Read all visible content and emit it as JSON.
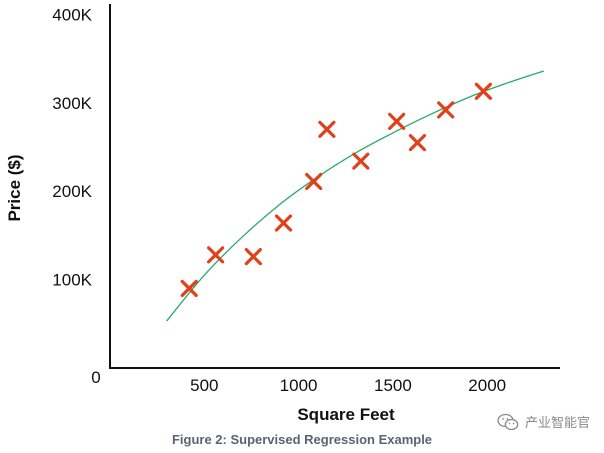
{
  "chart_data": {
    "type": "scatter",
    "title": "",
    "caption": "Figure 2: Supervised Regression Example",
    "xlabel": "Square Feet",
    "ylabel": "Price ($)",
    "xlim": [
      0,
      2350
    ],
    "ylim": [
      0,
      420000
    ],
    "x_ticks": [
      {
        "value": 500,
        "label": "500"
      },
      {
        "value": 1000,
        "label": "1000"
      },
      {
        "value": 1500,
        "label": "1500"
      },
      {
        "value": 2000,
        "label": "2000"
      }
    ],
    "y_ticks": [
      {
        "value": 100000,
        "label": "100K"
      },
      {
        "value": 200000,
        "label": "200K"
      },
      {
        "value": 300000,
        "label": "300K"
      },
      {
        "value": 400000,
        "label": "400K"
      }
    ],
    "origin_label": "0",
    "grid": false,
    "marker": "x",
    "marker_color": "#e0401a",
    "points": [
      {
        "x": 420,
        "y": 90000
      },
      {
        "x": 560,
        "y": 128000
      },
      {
        "x": 760,
        "y": 126000
      },
      {
        "x": 920,
        "y": 164000
      },
      {
        "x": 1080,
        "y": 211000
      },
      {
        "x": 1150,
        "y": 270000
      },
      {
        "x": 1330,
        "y": 234000
      },
      {
        "x": 1520,
        "y": 279000
      },
      {
        "x": 1630,
        "y": 255000
      },
      {
        "x": 1780,
        "y": 292000
      },
      {
        "x": 1980,
        "y": 313000
      }
    ],
    "trend_line": {
      "color": "#2aaa6a",
      "points": [
        {
          "x": 300,
          "y": 53000
        },
        {
          "x": 500,
          "y": 105000
        },
        {
          "x": 700,
          "y": 148000
        },
        {
          "x": 900,
          "y": 185000
        },
        {
          "x": 1100,
          "y": 216000
        },
        {
          "x": 1300,
          "y": 243000
        },
        {
          "x": 1500,
          "y": 266000
        },
        {
          "x": 1700,
          "y": 287000
        },
        {
          "x": 1900,
          "y": 306000
        },
        {
          "x": 2100,
          "y": 322000
        },
        {
          "x": 2300,
          "y": 336000
        }
      ]
    }
  },
  "watermark": {
    "text": "产业智能官",
    "icon": "wechat-icon"
  }
}
